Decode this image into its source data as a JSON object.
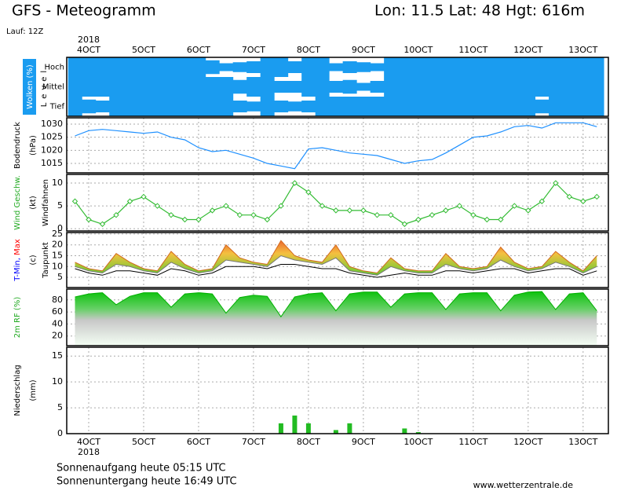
{
  "header": {
    "title": "GFS - Meteogramm",
    "location": "Lon: 11.5 Lat: 48 Hgt: 616m",
    "run": "Lauf: 12Z"
  },
  "time_axis": {
    "year": "2018",
    "xlim": [
      3.6,
      13.46
    ],
    "xticks": [
      {
        "value": 4,
        "label": "4OCT"
      },
      {
        "value": 5,
        "label": "5OCT"
      },
      {
        "value": 6,
        "label": "6OCT"
      },
      {
        "value": 7,
        "label": "7OCT"
      },
      {
        "value": 8,
        "label": "8OCT"
      },
      {
        "value": 9,
        "label": "9OCT"
      },
      {
        "value": 10,
        "label": "10OCT"
      },
      {
        "value": 11,
        "label": "11OCT"
      },
      {
        "value": 12,
        "label": "12OCT"
      },
      {
        "value": 13,
        "label": "13OCT"
      }
    ],
    "grid": true,
    "x": [
      3.75,
      4,
      4.25,
      4.5,
      4.75,
      5,
      5.25,
      5.5,
      5.75,
      6,
      6.25,
      6.5,
      6.75,
      7,
      7.25,
      7.5,
      7.75,
      8,
      8.25,
      8.5,
      8.75,
      9,
      9.25,
      9.5,
      9.75,
      10,
      10.25,
      10.5,
      10.75,
      11,
      11.25,
      11.5,
      11.75,
      12,
      12.25,
      12.5,
      12.75,
      13,
      13.25
    ]
  },
  "chart_data": [
    {
      "type": "cloud",
      "ylabel": [
        {
          "text": "Wolken (%)",
          "color": "#ffffff"
        }
      ],
      "level_label": "Level",
      "color": "#1a9cf0",
      "series": [
        {
          "name": "Hoch",
          "values": [
            100,
            100,
            100,
            100,
            100,
            100,
            100,
            100,
            100,
            100,
            70,
            40,
            50,
            60,
            100,
            100,
            60,
            100,
            100,
            40,
            60,
            50,
            40,
            100,
            100,
            100,
            100,
            100,
            100,
            100,
            100,
            100,
            100,
            100,
            100,
            100,
            100,
            100,
            100
          ]
        },
        {
          "name": "Mittel",
          "values": [
            100,
            100,
            100,
            100,
            100,
            100,
            100,
            100,
            100,
            100,
            100,
            100,
            70,
            100,
            100,
            60,
            60,
            100,
            100,
            60,
            70,
            40,
            60,
            100,
            100,
            100,
            100,
            100,
            100,
            100,
            100,
            100,
            100,
            100,
            100,
            100,
            100,
            100,
            100
          ]
        },
        {
          "name": "Tief",
          "values": [
            100,
            70,
            60,
            100,
            100,
            100,
            100,
            100,
            100,
            100,
            100,
            100,
            60,
            50,
            100,
            60,
            50,
            60,
            100,
            100,
            100,
            100,
            100,
            100,
            100,
            100,
            100,
            100,
            100,
            100,
            100,
            100,
            100,
            100,
            70,
            100,
            100,
            100,
            100
          ]
        }
      ]
    },
    {
      "type": "line",
      "ylabel": [
        {
          "text": "Bodendruck",
          "color": "#000000"
        }
      ],
      "yunit": "(hPa)",
      "ylim": [
        1011.4,
        1032.4
      ],
      "yticks": [
        1015,
        1020,
        1025,
        1030
      ],
      "grid": true,
      "series": [
        {
          "color": "#1e90ff",
          "values": [
            1025.5,
            1027.5,
            1028,
            1027.5,
            1027,
            1026.5,
            1027,
            1025,
            1024,
            1021,
            1019.5,
            1020,
            1018.5,
            1017,
            1015,
            1014,
            1013,
            1020.5,
            1021,
            1020,
            1019,
            1018.5,
            1018,
            1016.5,
            1015,
            1016,
            1016.5,
            1019,
            1022,
            1025,
            1025.5,
            1027,
            1029,
            1029.5,
            1028.5,
            1030.5,
            1030.5,
            1030.5,
            1029
          ]
        }
      ]
    },
    {
      "type": "wind",
      "ylabel": [
        {
          "text": "Wind Geschw.",
          "color": "#22aa22"
        }
      ],
      "yunit": "(kt)",
      "ylabel2": "Windfahnen",
      "ylim": [
        -0.5,
        11.9
      ],
      "yticks": [
        0,
        5,
        10
      ],
      "grid": true,
      "series": [
        {
          "color": "#33bb33",
          "values": [
            6,
            2,
            1,
            3,
            6,
            7,
            5,
            3,
            2,
            2,
            4,
            5,
            3,
            3,
            2,
            5,
            10,
            8,
            5,
            4,
            4,
            4,
            3,
            3,
            1,
            2,
            3,
            4,
            5,
            3,
            2,
            2,
            5,
            4,
            6,
            10,
            7,
            6,
            7
          ]
        }
      ]
    },
    {
      "type": "temperature",
      "ylabel": [
        {
          "text": "T-Min,",
          "color": "#0000ff"
        },
        {
          "text": " Max",
          "color": "#ff0000"
        }
      ],
      "yunit": "(c)",
      "ylabel2": "Taupunkt",
      "ylim": [
        0.3,
        25.7
      ],
      "yticks": [
        5,
        10,
        15,
        20,
        25
      ],
      "grid": true,
      "series": [
        {
          "color": "#d2691e",
          "values": [
            12,
            9,
            8,
            16,
            12,
            9,
            8,
            17,
            11,
            8,
            9,
            20,
            14,
            12,
            11,
            22,
            15,
            13,
            12,
            20,
            10,
            8,
            7,
            14,
            9,
            8,
            8,
            16,
            10,
            9,
            10,
            19,
            12,
            9,
            10,
            17,
            12,
            8,
            15
          ]
        },
        {
          "color": "#777777",
          "values": [
            10,
            8,
            7,
            11,
            10,
            8,
            7,
            12,
            9,
            7,
            8,
            13,
            12,
            11,
            10,
            15,
            13,
            12,
            11,
            14,
            8,
            7,
            6,
            10,
            8,
            7,
            7,
            11,
            9,
            8,
            9,
            13,
            10,
            8,
            9,
            12,
            10,
            7,
            10
          ]
        },
        {
          "color": "#000000",
          "values": [
            9,
            7,
            6,
            8,
            8,
            7,
            6,
            9,
            8,
            6,
            7,
            10,
            10,
            10,
            9,
            11,
            11,
            10,
            9,
            9,
            7,
            6,
            5,
            6,
            7,
            6,
            6,
            8,
            8,
            7,
            8,
            9,
            9,
            7,
            8,
            9,
            9,
            6,
            8
          ]
        }
      ]
    },
    {
      "type": "area",
      "ylabel": [
        {
          "text": "2m RF (%)",
          "color": "#22aa22"
        }
      ],
      "ylim": [
        4,
        98
      ],
      "yticks": [
        20,
        40,
        60,
        80
      ],
      "grid": true,
      "series": [
        {
          "color": "#00b000",
          "values": [
            85,
            90,
            92,
            72,
            86,
            92,
            92,
            68,
            90,
            92,
            90,
            58,
            84,
            88,
            86,
            52,
            85,
            90,
            92,
            62,
            90,
            93,
            93,
            68,
            90,
            92,
            92,
            64,
            90,
            92,
            92,
            62,
            88,
            93,
            94,
            64,
            90,
            92,
            62
          ]
        }
      ]
    },
    {
      "type": "bar",
      "ylabel": [
        {
          "text": "Niederschlag",
          "color": "#000000"
        }
      ],
      "yunit": "(mm)",
      "ylim": [
        0,
        16.7
      ],
      "yticks": [
        0,
        5,
        10,
        15
      ],
      "grid": true,
      "color": "#22bb22",
      "values": [
        0,
        0,
        0,
        0,
        0,
        0,
        0,
        0,
        0,
        0,
        0,
        0,
        0,
        0,
        0,
        2,
        3.5,
        2,
        0,
        0.7,
        2,
        0,
        0,
        0,
        1,
        0.3,
        0,
        0,
        0,
        0,
        0,
        0,
        0,
        0,
        0,
        0,
        0,
        0,
        0
      ]
    }
  ],
  "footer": {
    "sunrise": "Sonnenaufgang heute 05:15 UTC",
    "sunset": "Sonnenuntergang heute 16:49 UTC",
    "source": "www.wetterzentrale.de"
  }
}
